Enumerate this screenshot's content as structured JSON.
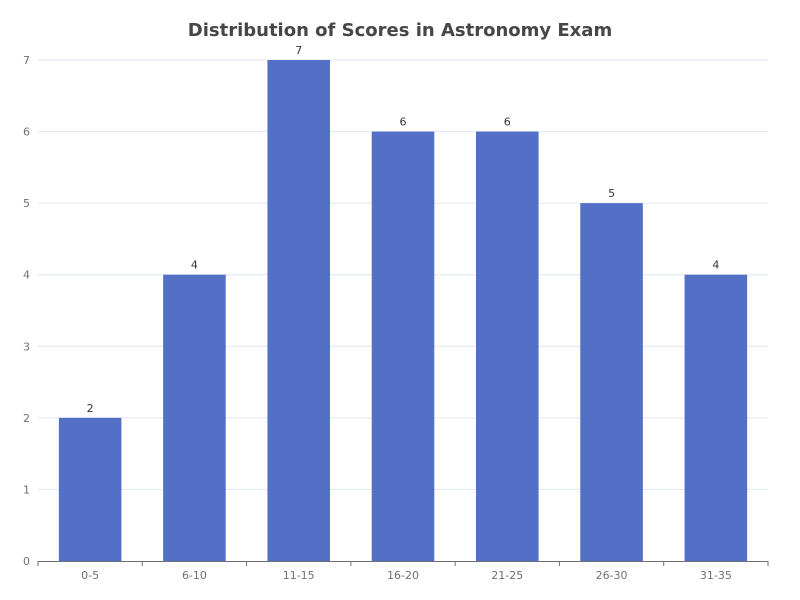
{
  "chart_data": {
    "type": "bar",
    "title": "Distribution of Scores in Astronomy Exam",
    "xlabel": "",
    "ylabel": "",
    "categories": [
      "0-5",
      "6-10",
      "11-15",
      "16-20",
      "21-25",
      "26-30",
      "31-35"
    ],
    "values": [
      2,
      4,
      7,
      6,
      6,
      5,
      4
    ],
    "ylim": [
      0,
      7
    ],
    "yticks": [
      "0",
      "1",
      "2",
      "3",
      "4",
      "5",
      "6",
      "7"
    ],
    "grid": true,
    "legend": "none",
    "data_labels": true,
    "bar_color": "#5470c6",
    "grid_color": "#e0e6f1",
    "axis_color": "#6e7079"
  }
}
